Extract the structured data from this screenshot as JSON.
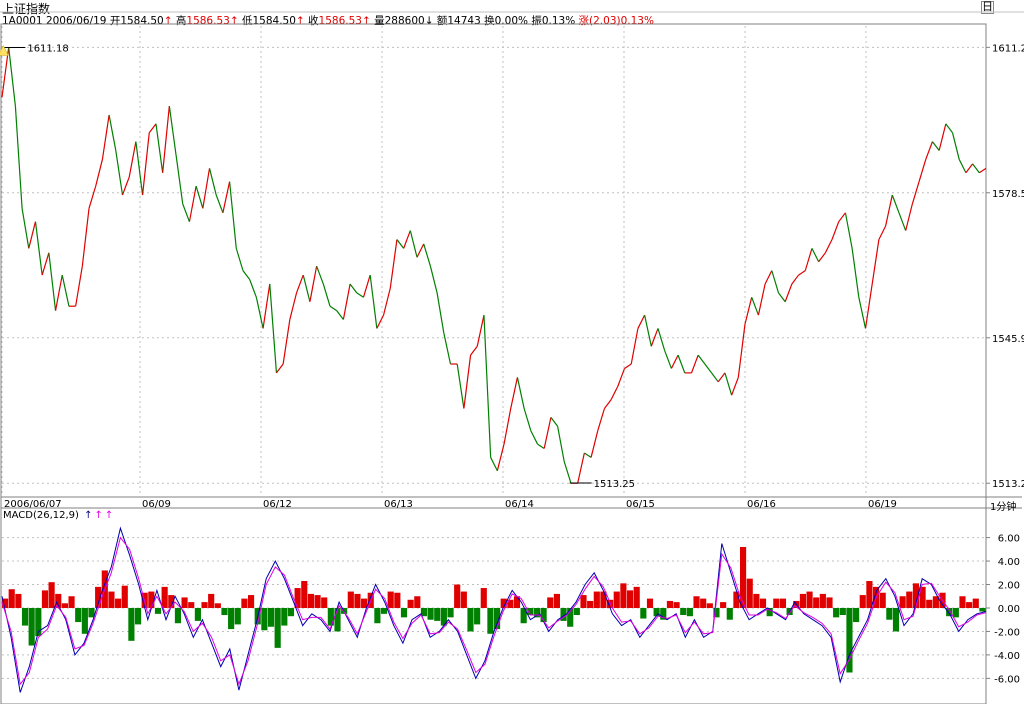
{
  "header": {
    "title": "上证指数",
    "symbol": "1A0001",
    "date": "2006/06/19",
    "open_label": "开",
    "open": "1584.50",
    "high_label": "高",
    "high": "1586.53",
    "low_label": "低",
    "low": "1584.50",
    "close_label": "收",
    "close": "1586.53",
    "volume_label": "量",
    "volume": "288600",
    "amount_label": "额",
    "amount": "14743",
    "turnover_label": "换",
    "turnover": "0.00%",
    "amplitude_label": "振",
    "amplitude": "0.13%",
    "change_label": "涨",
    "change": "(2.03)",
    "change_pct": "0.13%",
    "up_arrow": "↑",
    "down_arrow": "↓",
    "window_icon": "日"
  },
  "colors": {
    "up": "#e00000",
    "down": "#008000",
    "dif": "#0000b0",
    "dea": "#e000e0",
    "grid": "#c0c0c0"
  },
  "macd_panel": {
    "label": "MACD(26,12,9)",
    "arrows": [
      "↑",
      "↑",
      "↑"
    ]
  },
  "unit_label": "1分钟",
  "chart_data": [
    {
      "type": "line",
      "title": "上证指数 1分钟",
      "x_labels": [
        "2006/06/07",
        "06/09",
        "06/12",
        "06/13",
        "06/14",
        "06/15",
        "06/16",
        "06/19"
      ],
      "y_ticks": [
        1611.2,
        1578.5,
        1545.9,
        1513.2
      ],
      "ylim": [
        1511,
        1616
      ],
      "annotations": [
        {
          "label": "1611.18",
          "x": 0.2,
          "y": 1611.18
        },
        {
          "label": "1513.25",
          "x": 84.8,
          "y": 1513.25
        }
      ],
      "x_range": [
        0,
        147
      ],
      "series": [
        {
          "points": [
            [
              0,
              1600
            ],
            [
              1,
              1611.2
            ],
            [
              2,
              1598
            ],
            [
              3,
              1575
            ],
            [
              4,
              1566
            ],
            [
              5,
              1572
            ],
            [
              6,
              1560
            ],
            [
              7,
              1565
            ],
            [
              8,
              1552
            ],
            [
              9,
              1560
            ],
            [
              10,
              1553
            ],
            [
              11,
              1553
            ],
            [
              12,
              1562
            ],
            [
              13,
              1575
            ],
            [
              14,
              1580
            ],
            [
              15,
              1586
            ],
            [
              16,
              1596
            ],
            [
              17,
              1588
            ],
            [
              18,
              1578
            ],
            [
              19,
              1582
            ],
            [
              20,
              1590
            ],
            [
              21,
              1578
            ],
            [
              22,
              1592
            ],
            [
              23,
              1594
            ],
            [
              24,
              1583
            ],
            [
              25,
              1598
            ],
            [
              26,
              1587
            ],
            [
              27,
              1576
            ],
            [
              28,
              1572
            ],
            [
              29,
              1580
            ],
            [
              30,
              1575
            ],
            [
              31,
              1584
            ],
            [
              32,
              1578
            ],
            [
              33,
              1574
            ],
            [
              34,
              1581
            ],
            [
              35,
              1566
            ],
            [
              36,
              1561
            ],
            [
              37,
              1559
            ],
            [
              38,
              1555
            ],
            [
              39,
              1548
            ],
            [
              40,
              1558
            ],
            [
              41,
              1538
            ],
            [
              42,
              1540
            ],
            [
              43,
              1550
            ],
            [
              44,
              1556
            ],
            [
              45,
              1560
            ],
            [
              46,
              1554
            ],
            [
              47,
              1562
            ],
            [
              48,
              1558
            ],
            [
              49,
              1553
            ],
            [
              50,
              1552
            ],
            [
              51,
              1550
            ],
            [
              52,
              1558
            ],
            [
              53,
              1556
            ],
            [
              54,
              1555
            ],
            [
              55,
              1560
            ],
            [
              56,
              1548
            ],
            [
              57,
              1551
            ],
            [
              58,
              1557
            ],
            [
              59,
              1568
            ],
            [
              60,
              1566
            ],
            [
              61,
              1570
            ],
            [
              62,
              1564
            ],
            [
              63,
              1567
            ],
            [
              64,
              1562
            ],
            [
              65,
              1556
            ],
            [
              66,
              1547
            ],
            [
              67,
              1540
            ],
            [
              68,
              1540
            ],
            [
              69,
              1530
            ],
            [
              70,
              1542
            ],
            [
              71,
              1544
            ],
            [
              72,
              1551
            ],
            [
              73,
              1519
            ],
            [
              74,
              1516
            ],
            [
              75,
              1522
            ],
            [
              76,
              1530
            ],
            [
              77,
              1537
            ],
            [
              78,
              1530
            ],
            [
              79,
              1525
            ],
            [
              80,
              1522
            ],
            [
              81,
              1521
            ],
            [
              82,
              1528
            ],
            [
              83,
              1526
            ],
            [
              84,
              1518
            ],
            [
              85,
              1513.2
            ],
            [
              86,
              1513.2
            ],
            [
              87,
              1520
            ],
            [
              88,
              1519
            ],
            [
              89,
              1525
            ],
            [
              90,
              1530
            ],
            [
              91,
              1532
            ],
            [
              92,
              1535
            ],
            [
              93,
              1539
            ],
            [
              94,
              1540
            ],
            [
              95,
              1548
            ],
            [
              96,
              1551
            ],
            [
              97,
              1544
            ],
            [
              98,
              1548
            ],
            [
              99,
              1543
            ],
            [
              100,
              1539
            ],
            [
              101,
              1542
            ],
            [
              102,
              1538
            ],
            [
              103,
              1538
            ],
            [
              104,
              1542
            ],
            [
              105,
              1540
            ],
            [
              106,
              1538
            ],
            [
              107,
              1536
            ],
            [
              108,
              1538
            ],
            [
              109,
              1533
            ],
            [
              110,
              1537
            ],
            [
              111,
              1549
            ],
            [
              112,
              1555
            ],
            [
              113,
              1551
            ],
            [
              114,
              1558
            ],
            [
              115,
              1561
            ],
            [
              116,
              1556
            ],
            [
              117,
              1554
            ],
            [
              118,
              1558
            ],
            [
              119,
              1560
            ],
            [
              120,
              1561
            ],
            [
              121,
              1566
            ],
            [
              122,
              1563
            ],
            [
              123,
              1565
            ],
            [
              124,
              1568
            ],
            [
              125,
              1572
            ],
            [
              126,
              1574
            ],
            [
              127,
              1566
            ],
            [
              128,
              1555
            ],
            [
              129,
              1548
            ],
            [
              130,
              1558
            ],
            [
              131,
              1568
            ],
            [
              132,
              1571
            ],
            [
              133,
              1578
            ],
            [
              134,
              1574
            ],
            [
              135,
              1570
            ],
            [
              136,
              1576
            ],
            [
              137,
              1581
            ],
            [
              138,
              1586
            ],
            [
              139,
              1590
            ],
            [
              140,
              1588
            ],
            [
              141,
              1594
            ],
            [
              142,
              1592
            ],
            [
              143,
              1586
            ],
            [
              144,
              1583
            ],
            [
              145,
              1585
            ],
            [
              146,
              1583
            ],
            [
              147,
              1584
            ]
          ]
        }
      ]
    },
    {
      "type": "bar",
      "title": "MACD(26,12,9)",
      "y_ticks": [
        6.0,
        4.0,
        2.0,
        0.0,
        -2.0,
        -4.0,
        -6.0
      ],
      "ylim": [
        -8.1,
        7.5
      ],
      "x_range": [
        0,
        147
      ],
      "macd": [
        0.8,
        1.6,
        1.2,
        -1.5,
        -3.2,
        -2.4,
        1.5,
        2.2,
        1.2,
        0.4,
        1.0,
        -1.2,
        -2.2,
        -0.8,
        1.8,
        3.2,
        1.4,
        0.8,
        1.9,
        -2.8,
        -1.4,
        1.3,
        1.4,
        -0.5,
        1.8,
        1.1,
        -1.3,
        0.9,
        0.5,
        -1.1,
        0.5,
        1.2,
        0.4,
        -0.6,
        -1.8,
        -1.4,
        0.8,
        1.1,
        -1.4,
        -1.9,
        -1.6,
        -3.4,
        -1.5,
        -0.7,
        1.7,
        2.3,
        1.2,
        1.1,
        0.9,
        -1.5,
        -2.0,
        -0.5,
        1.4,
        1.2,
        0.8,
        1.3,
        -1.3,
        -0.5,
        1.4,
        1.3,
        -0.8,
        0.7,
        1.0,
        -0.7,
        -1.0,
        -1.1,
        -1.5,
        -0.8,
        2.0,
        1.4,
        -2.0,
        -1.4,
        1.7,
        -2.2,
        -1.8,
        0.8,
        0.7,
        1.0,
        -1.3,
        -0.6,
        -0.8,
        -1.2,
        0.9,
        1.2,
        -1.1,
        -1.6,
        -0.6,
        1.1,
        0.6,
        1.4,
        1.4,
        0.7,
        1.4,
        2.1,
        1.5,
        1.8,
        -0.9,
        0.8,
        -0.7,
        -1.0,
        0.6,
        0.5,
        -0.6,
        -0.7,
        1.0,
        0.8,
        0.4,
        -0.8,
        0.5,
        -1.0,
        1.4,
        5.2,
        2.5,
        1.2,
        0.8,
        -0.7,
        0.8,
        0.8,
        -0.6,
        0.6,
        1.2,
        1.4,
        0.9,
        1.2,
        0.9,
        -0.8,
        -0.6,
        -5.5,
        -1.2,
        1.1,
        2.3,
        1.8,
        1.3,
        -1.0,
        -2.0,
        1.0,
        1.4,
        2.1,
        1.8,
        0.7,
        1.0,
        1.3,
        -0.7,
        -0.8,
        1.0,
        0.5,
        0.8,
        -0.3
      ],
      "series": [
        {
          "name": "DIF",
          "values": [
            1.0,
            -2.5,
            -7.2,
            -5.0,
            -2.0,
            -1.5,
            0.5,
            -1.0,
            -4.0,
            -3.0,
            -1.0,
            1.5,
            3.5,
            6.8,
            4.5,
            2.0,
            -1.0,
            1.5,
            -1.0,
            1.0,
            -0.5,
            -2.5,
            -1.0,
            -3.0,
            -5.0,
            -3.5,
            -7.0,
            -4.0,
            -1.0,
            2.5,
            4.0,
            2.5,
            0.5,
            -1.5,
            -0.5,
            -1.0,
            -2.0,
            0.5,
            -1.0,
            -2.5,
            0.0,
            2.0,
            0.5,
            -1.5,
            -3.0,
            -1.0,
            -0.5,
            -2.5,
            -2.0,
            -1.0,
            -2.0,
            -4.0,
            -6.0,
            -4.5,
            -2.0,
            0.0,
            1.5,
            0.5,
            -1.0,
            -0.5,
            -2.0,
            -1.0,
            -0.5,
            0.5,
            2.0,
            3.0,
            1.5,
            -0.5,
            -1.5,
            -1.0,
            -2.5,
            -1.5,
            -0.5,
            -1.0,
            -0.5,
            -2.5,
            -1.0,
            -2.5,
            -2.0,
            5.5,
            3.0,
            0.5,
            -1.0,
            -0.5,
            0.0,
            -0.5,
            -1.0,
            0.5,
            -0.5,
            -1.0,
            -1.5,
            -2.5,
            -6.3,
            -4.0,
            -2.5,
            -1.0,
            1.5,
            2.5,
            1.0,
            -1.5,
            -0.5,
            2.5,
            2.0,
            0.5,
            -0.5,
            -2.0,
            -1.0,
            -0.5,
            -0.3
          ]
        },
        {
          "name": "DEA",
          "values": [
            0.5,
            -2.0,
            -6.5,
            -5.5,
            -2.5,
            -1.8,
            0.2,
            -0.8,
            -3.5,
            -3.2,
            -1.3,
            1.0,
            3.0,
            6.0,
            5.0,
            2.5,
            -0.5,
            1.0,
            -0.5,
            0.5,
            -0.3,
            -2.0,
            -1.3,
            -2.5,
            -4.5,
            -4.0,
            -6.5,
            -4.5,
            -1.5,
            2.0,
            3.5,
            2.8,
            0.8,
            -1.0,
            -0.8,
            -0.8,
            -1.8,
            0.2,
            -0.8,
            -2.2,
            -0.3,
            1.6,
            0.8,
            -1.2,
            -2.6,
            -1.3,
            -0.6,
            -2.2,
            -2.1,
            -1.2,
            -1.8,
            -3.6,
            -5.5,
            -4.8,
            -2.4,
            -0.3,
            1.2,
            0.8,
            -0.6,
            -0.6,
            -1.7,
            -1.1,
            -0.6,
            0.3,
            1.6,
            2.7,
            1.8,
            0.0,
            -1.2,
            -1.1,
            -2.2,
            -1.7,
            -0.7,
            -0.9,
            -0.6,
            -2.1,
            -1.2,
            -2.2,
            -2.1,
            4.6,
            3.4,
            1.0,
            -0.6,
            -0.6,
            -0.1,
            -0.4,
            -0.9,
            0.2,
            -0.4,
            -0.8,
            -1.3,
            -2.2,
            -5.6,
            -4.4,
            -2.8,
            -1.3,
            1.0,
            2.2,
            1.3,
            -1.0,
            -0.7,
            2.0,
            2.1,
            0.9,
            -0.2,
            -1.6,
            -1.2,
            -0.6,
            -0.4
          ]
        }
      ]
    }
  ]
}
